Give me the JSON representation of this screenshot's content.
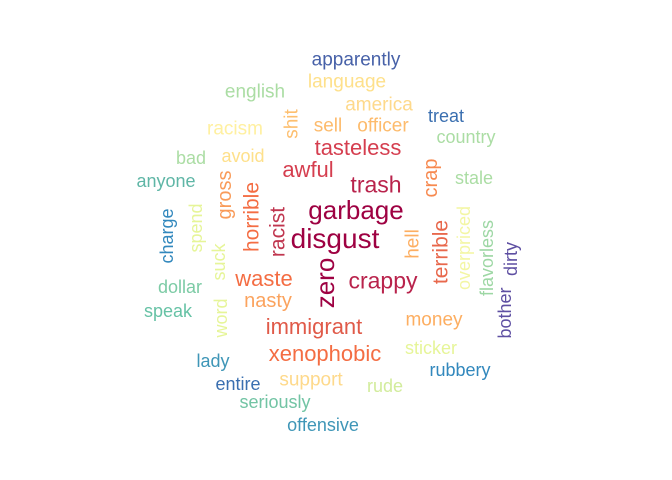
{
  "words": [
    {
      "text": "disgust",
      "color": "#9e0142"
    },
    {
      "text": "garbage",
      "color": "#9e0142"
    },
    {
      "text": "zero",
      "color": "#9e0142"
    },
    {
      "text": "trash",
      "color": "#b9234c"
    },
    {
      "text": "crappy",
      "color": "#b9234c"
    },
    {
      "text": "racist",
      "color": "#c0364f"
    },
    {
      "text": "awful",
      "color": "#d53e4f"
    },
    {
      "text": "tasteless",
      "color": "#d53e4f"
    },
    {
      "text": "immigrant",
      "color": "#e05a49"
    },
    {
      "text": "terrible",
      "color": "#e8684c"
    },
    {
      "text": "horrible",
      "color": "#f46d43"
    },
    {
      "text": "waste",
      "color": "#f46d43"
    },
    {
      "text": "xenophobic",
      "color": "#f46d43"
    },
    {
      "text": "crap",
      "color": "#f7894f"
    },
    {
      "text": "gross",
      "color": "#f99b59"
    },
    {
      "text": "nasty",
      "color": "#fba35e"
    },
    {
      "text": "hell",
      "color": "#fdae61"
    },
    {
      "text": "money",
      "color": "#fdae61"
    },
    {
      "text": "sell",
      "color": "#fdbb6c"
    },
    {
      "text": "officer",
      "color": "#fdbb6c"
    },
    {
      "text": "shit",
      "color": "#fdbf6f"
    },
    {
      "text": "america",
      "color": "#fed98b"
    },
    {
      "text": "support",
      "color": "#fed98b"
    },
    {
      "text": "avoid",
      "color": "#fee08b"
    },
    {
      "text": "language",
      "color": "#fee08b"
    },
    {
      "text": "racism",
      "color": "#fff0a0"
    },
    {
      "text": "overpriced",
      "color": "#f3f6a4"
    },
    {
      "text": "suck",
      "color": "#e6f598"
    },
    {
      "text": "word",
      "color": "#e6f598"
    },
    {
      "text": "spend",
      "color": "#e6f598"
    },
    {
      "text": "sticker",
      "color": "#e6f598"
    },
    {
      "text": "rude",
      "color": "#d2ec9c"
    },
    {
      "text": "stale",
      "color": "#abdda4"
    },
    {
      "text": "country",
      "color": "#abdda4"
    },
    {
      "text": "english",
      "color": "#abdda4"
    },
    {
      "text": "bad",
      "color": "#abdda4"
    },
    {
      "text": "flavorless",
      "color": "#9dd7a4"
    },
    {
      "text": "dollar",
      "color": "#7ccba5"
    },
    {
      "text": "seriously",
      "color": "#72c4a4"
    },
    {
      "text": "speak",
      "color": "#66c2a5"
    },
    {
      "text": "anyone",
      "color": "#5fb6a6"
    },
    {
      "text": "charge",
      "color": "#3288bd"
    },
    {
      "text": "offensive",
      "color": "#3f96b7"
    },
    {
      "text": "lady",
      "color": "#3f96b7"
    },
    {
      "text": "rubbery",
      "color": "#3288bd"
    },
    {
      "text": "entire",
      "color": "#3a6fb0"
    },
    {
      "text": "treat",
      "color": "#3a6fb0"
    },
    {
      "text": "apparently",
      "color": "#4761a8"
    },
    {
      "text": "dirty",
      "color": "#5e4fa2"
    },
    {
      "text": "bother",
      "color": "#5e4fa2"
    }
  ]
}
